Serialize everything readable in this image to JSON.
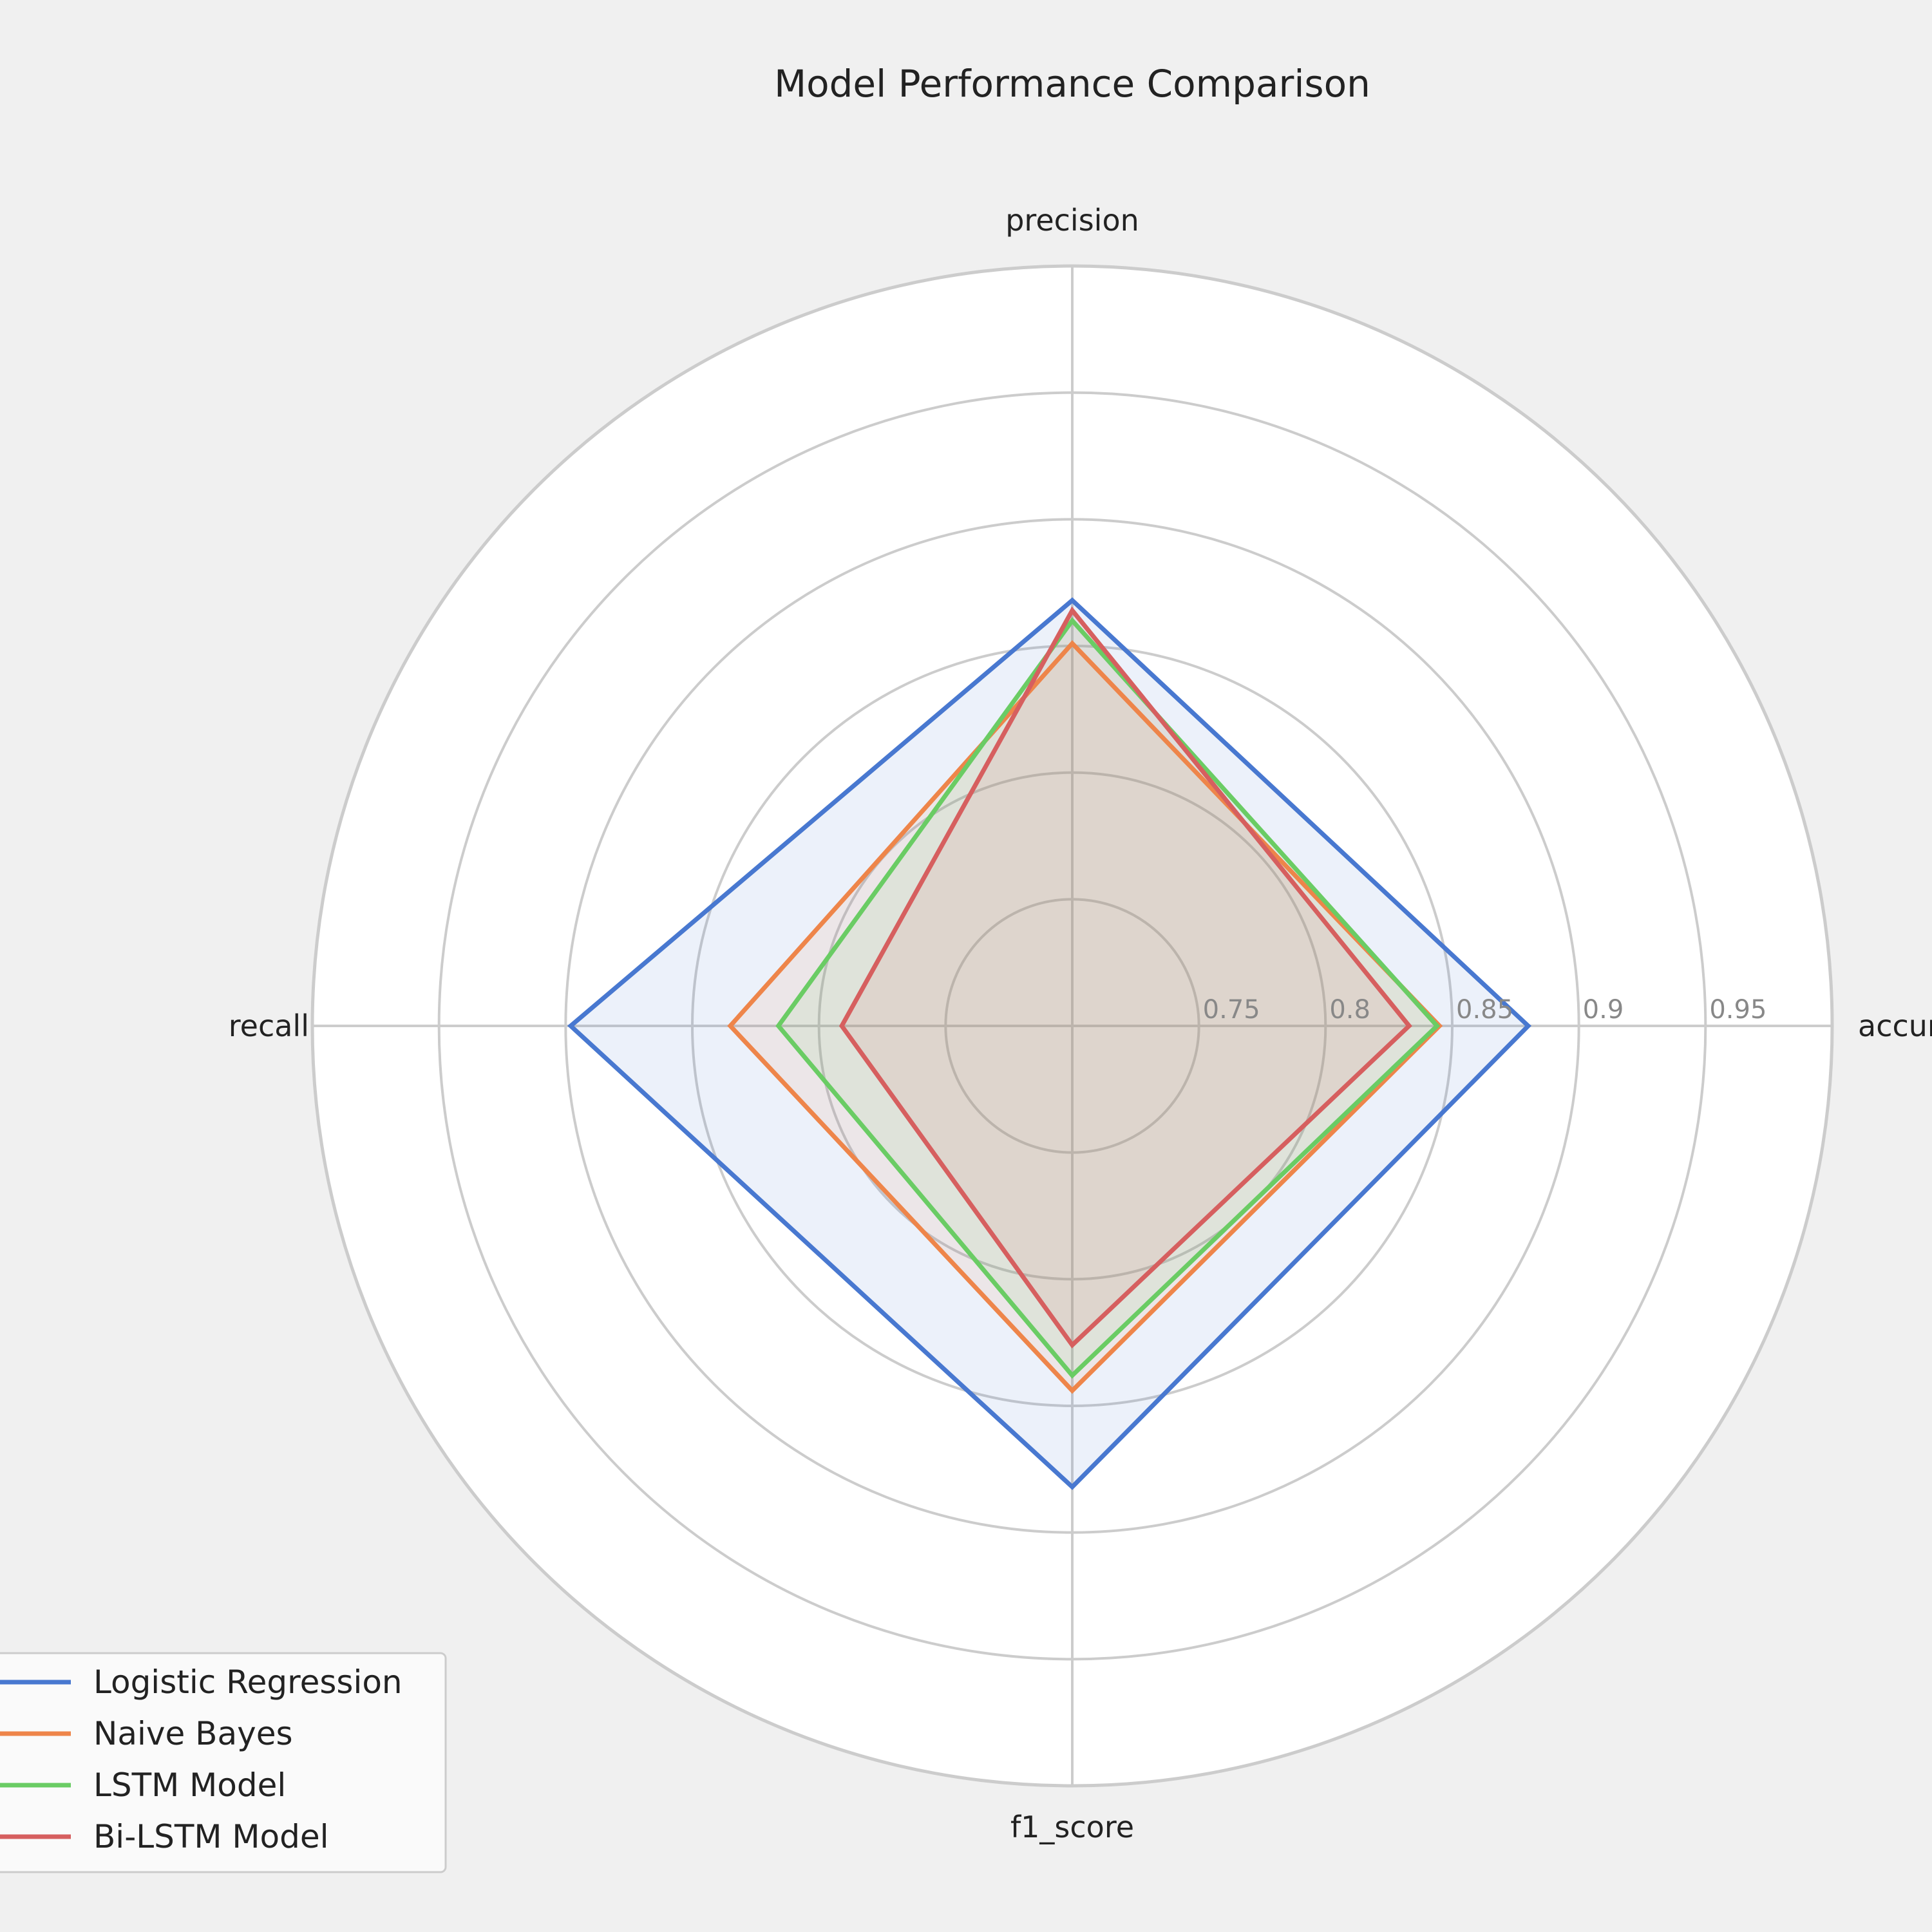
{
  "chart_data": {
    "type": "radar",
    "title": "Model Performance Comparison",
    "axes": [
      "accuracy",
      "precision",
      "recall",
      "f1_score"
    ],
    "radial_range": [
      0.7,
      1.0
    ],
    "radial_ticks": [
      0.75,
      0.8,
      0.85,
      0.9,
      0.95
    ],
    "radial_tick_labels": [
      "0.75",
      "0.8",
      "0.85",
      "0.9",
      "0.95"
    ],
    "grid": true,
    "legend_position": "bottom-left",
    "series": [
      {
        "name": "Logistic Regression",
        "color": "#4878d0",
        "values": [
          0.88,
          0.868,
          0.898,
          0.882
        ]
      },
      {
        "name": "Naive Bayes",
        "color": "#ee854a",
        "values": [
          0.845,
          0.851,
          0.835,
          0.844
        ]
      },
      {
        "name": "LSTM Model",
        "color": "#6acc64",
        "values": [
          0.844,
          0.86,
          0.816,
          0.838
        ]
      },
      {
        "name": "Bi-LSTM Model",
        "color": "#d65f5f",
        "values": [
          0.833,
          0.864,
          0.791,
          0.826
        ]
      }
    ]
  }
}
